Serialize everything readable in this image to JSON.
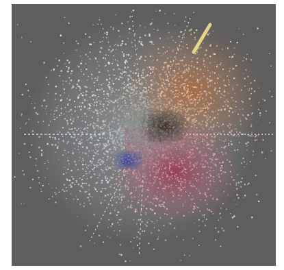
{
  "image": {
    "background_color": "#5e5e5e",
    "frame_color": "#ffffff",
    "subject": "3d-color-point-cloud",
    "palette": {
      "center": "#6f7a7a",
      "upper_right_warm": "#c98a5a",
      "upper_right_yellow": "#efe28a",
      "lower_center_red": "#b5475f",
      "lower_center_blue": "#3c4fa6",
      "left_pale": "#b9c6d6",
      "lower_pink": "#e9b7c4",
      "upper_pale": "#dcd3c8",
      "dark_core": "#2f2b25",
      "ray_color": "#f2f2f2"
    }
  }
}
